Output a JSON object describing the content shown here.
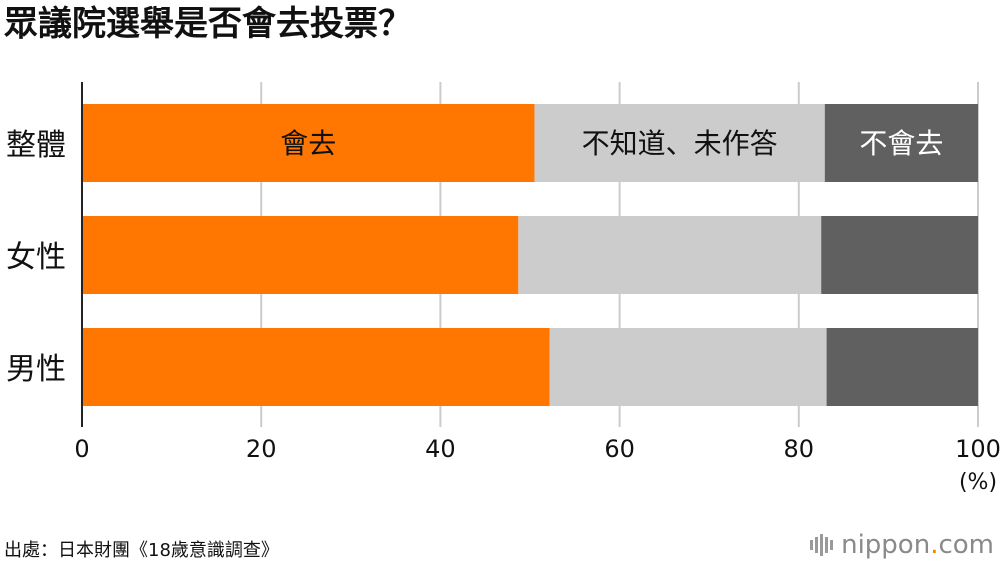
{
  "title": "眾議院選舉是否會去投票？",
  "source": "出處：日本財團《18歲意識調查》",
  "brand": {
    "name": "nippon",
    "dot": ".",
    "tld": "com"
  },
  "chart_data": {
    "type": "bar",
    "orientation": "horizontal",
    "stacked": true,
    "categories": [
      "整體",
      "女性",
      "男性"
    ],
    "series": [
      {
        "name": "會去",
        "color": "#ff7700",
        "values": [
          50.5,
          48.7,
          52.2
        ]
      },
      {
        "name": "不知道、未作答",
        "color": "#cccccc",
        "values": [
          32.4,
          33.8,
          30.9
        ]
      },
      {
        "name": "不會去",
        "color": "#606060",
        "values": [
          17.1,
          17.5,
          16.9
        ]
      }
    ],
    "xlim": [
      0,
      100
    ],
    "xticks": [
      0,
      20,
      40,
      60,
      80,
      100
    ],
    "x_unit": "(%)",
    "grid": true,
    "legend": "inside-first-bar"
  }
}
